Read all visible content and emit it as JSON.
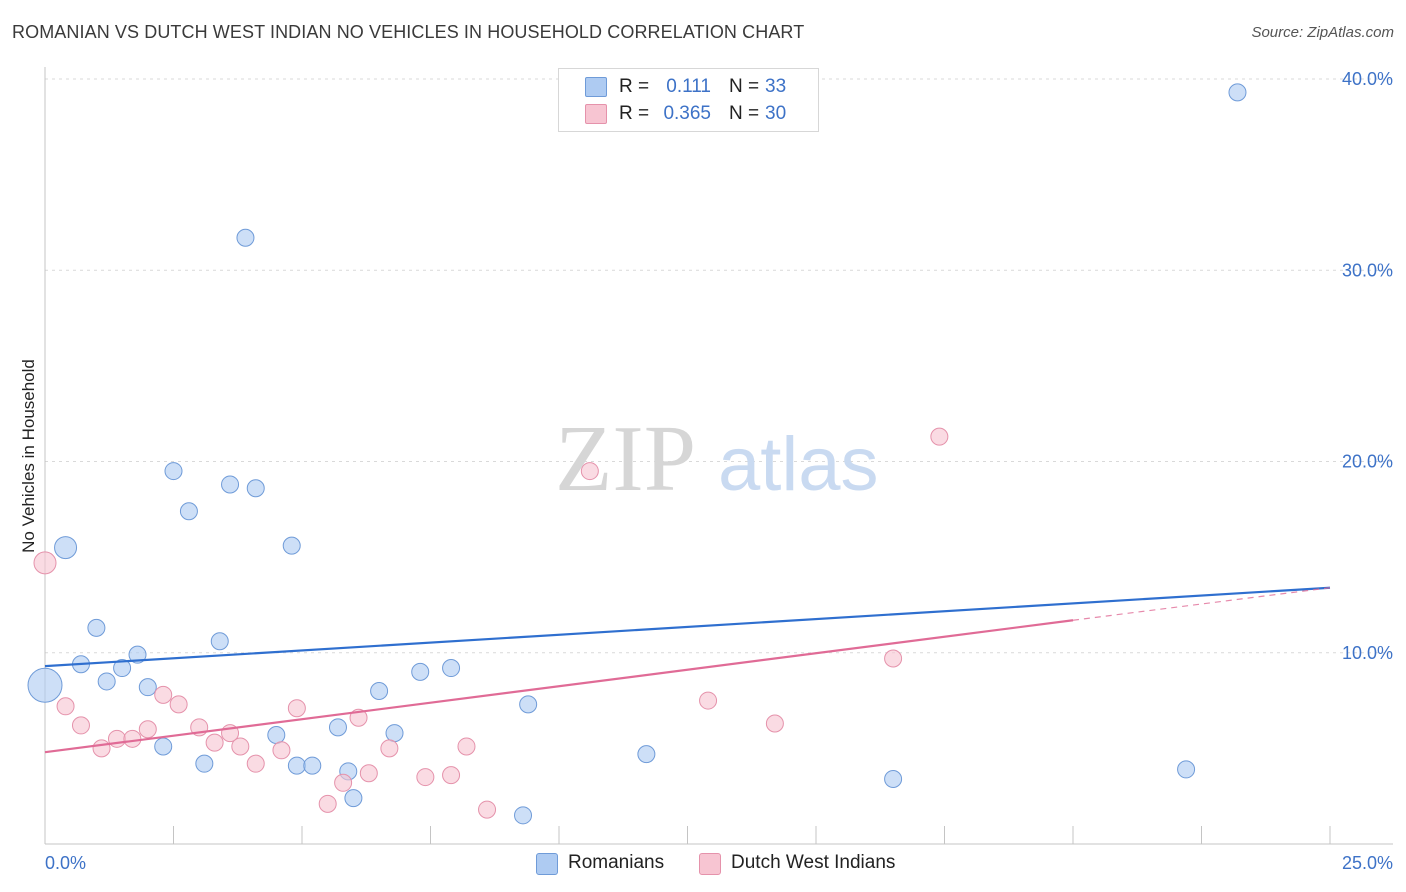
{
  "header": {
    "title": "ROMANIAN VS DUTCH WEST INDIAN NO VEHICLES IN HOUSEHOLD CORRELATION CHART",
    "source": "Source: ZipAtlas.com"
  },
  "watermark": {
    "zip": "ZIP",
    "atlas": "atlas"
  },
  "legend": {
    "r_label": "R =",
    "n_label": "N =",
    "rows": [
      {
        "r": "0.111",
        "n": "33",
        "color": "#aecbf2",
        "border": "#6f9bd8"
      },
      {
        "r": "0.365",
        "n": "30",
        "color": "#f7c5d2",
        "border": "#e592ab"
      }
    ]
  },
  "chart_data": {
    "type": "scatter",
    "title": "ROMANIAN VS DUTCH WEST INDIAN NO VEHICLES IN HOUSEHOLD CORRELATION CHART",
    "xlabel": "",
    "ylabel": "No Vehicles in Household",
    "xlim": [
      0,
      25
    ],
    "ylim": [
      0,
      40
    ],
    "x_tick_labels": [
      "0.0%",
      "25.0%"
    ],
    "y_tick_values": [
      10,
      20,
      30,
      40
    ],
    "y_tick_labels": [
      "10.0%",
      "20.0%",
      "30.0%",
      "40.0%"
    ],
    "grid": true,
    "legend_position": "top-center",
    "series": [
      {
        "name": "Romanians",
        "color": "#aecbf2",
        "stroke": "#6f9bd8",
        "trend_color": "#2f6fcf",
        "trend": {
          "x0": 0,
          "y0": 9.3,
          "x1": 25,
          "y1": 13.4
        },
        "points": [
          {
            "x": 0.0,
            "y": 8.3,
            "big": true
          },
          {
            "x": 0.4,
            "y": 15.5
          },
          {
            "x": 0.7,
            "y": 9.4
          },
          {
            "x": 1.0,
            "y": 11.3
          },
          {
            "x": 1.2,
            "y": 8.5
          },
          {
            "x": 1.5,
            "y": 9.2
          },
          {
            "x": 1.8,
            "y": 9.9
          },
          {
            "x": 2.0,
            "y": 8.2
          },
          {
            "x": 2.3,
            "y": 5.1
          },
          {
            "x": 2.5,
            "y": 19.5
          },
          {
            "x": 2.8,
            "y": 17.4
          },
          {
            "x": 3.1,
            "y": 4.2
          },
          {
            "x": 3.4,
            "y": 10.6
          },
          {
            "x": 3.6,
            "y": 18.8
          },
          {
            "x": 3.9,
            "y": 31.7
          },
          {
            "x": 4.1,
            "y": 18.6
          },
          {
            "x": 4.5,
            "y": 5.7
          },
          {
            "x": 4.8,
            "y": 15.6
          },
          {
            "x": 4.9,
            "y": 4.1
          },
          {
            "x": 5.2,
            "y": 4.1
          },
          {
            "x": 5.7,
            "y": 6.1
          },
          {
            "x": 5.9,
            "y": 3.8
          },
          {
            "x": 6.0,
            "y": 2.4
          },
          {
            "x": 6.5,
            "y": 8.0
          },
          {
            "x": 6.8,
            "y": 5.8
          },
          {
            "x": 7.3,
            "y": 9.0
          },
          {
            "x": 7.9,
            "y": 9.2
          },
          {
            "x": 9.3,
            "y": 1.5
          },
          {
            "x": 9.4,
            "y": 7.3
          },
          {
            "x": 11.7,
            "y": 4.7
          },
          {
            "x": 16.5,
            "y": 3.4
          },
          {
            "x": 22.2,
            "y": 3.9
          },
          {
            "x": 23.2,
            "y": 39.3
          }
        ]
      },
      {
        "name": "Dutch West Indians",
        "color": "#f7c5d2",
        "stroke": "#e592ab",
        "trend_color": "#e06b96",
        "trend": {
          "x0": 0,
          "y0": 4.8,
          "x1": 20,
          "y1": 11.7
        },
        "trend_dashed": {
          "x0": 20,
          "y0": 11.7,
          "x1": 25,
          "y1": 13.4
        },
        "points": [
          {
            "x": 0.0,
            "y": 14.7
          },
          {
            "x": 0.4,
            "y": 7.2
          },
          {
            "x": 0.7,
            "y": 6.2
          },
          {
            "x": 1.1,
            "y": 5.0
          },
          {
            "x": 1.4,
            "y": 5.5
          },
          {
            "x": 1.7,
            "y": 5.5
          },
          {
            "x": 2.0,
            "y": 6.0
          },
          {
            "x": 2.3,
            "y": 7.8
          },
          {
            "x": 2.6,
            "y": 7.3
          },
          {
            "x": 3.0,
            "y": 6.1
          },
          {
            "x": 3.3,
            "y": 5.3
          },
          {
            "x": 3.6,
            "y": 5.8
          },
          {
            "x": 3.8,
            "y": 5.1
          },
          {
            "x": 4.1,
            "y": 4.2
          },
          {
            "x": 4.6,
            "y": 4.9
          },
          {
            "x": 4.9,
            "y": 7.1
          },
          {
            "x": 5.5,
            "y": 2.1
          },
          {
            "x": 5.8,
            "y": 3.2
          },
          {
            "x": 6.1,
            "y": 6.6
          },
          {
            "x": 6.3,
            "y": 3.7
          },
          {
            "x": 6.7,
            "y": 5.0
          },
          {
            "x": 7.4,
            "y": 3.5
          },
          {
            "x": 7.9,
            "y": 3.6
          },
          {
            "x": 8.2,
            "y": 5.1
          },
          {
            "x": 8.6,
            "y": 1.8
          },
          {
            "x": 10.6,
            "y": 19.5
          },
          {
            "x": 12.9,
            "y": 7.5
          },
          {
            "x": 14.2,
            "y": 6.3
          },
          {
            "x": 16.5,
            "y": 9.7
          },
          {
            "x": 17.4,
            "y": 21.3
          }
        ]
      }
    ]
  }
}
